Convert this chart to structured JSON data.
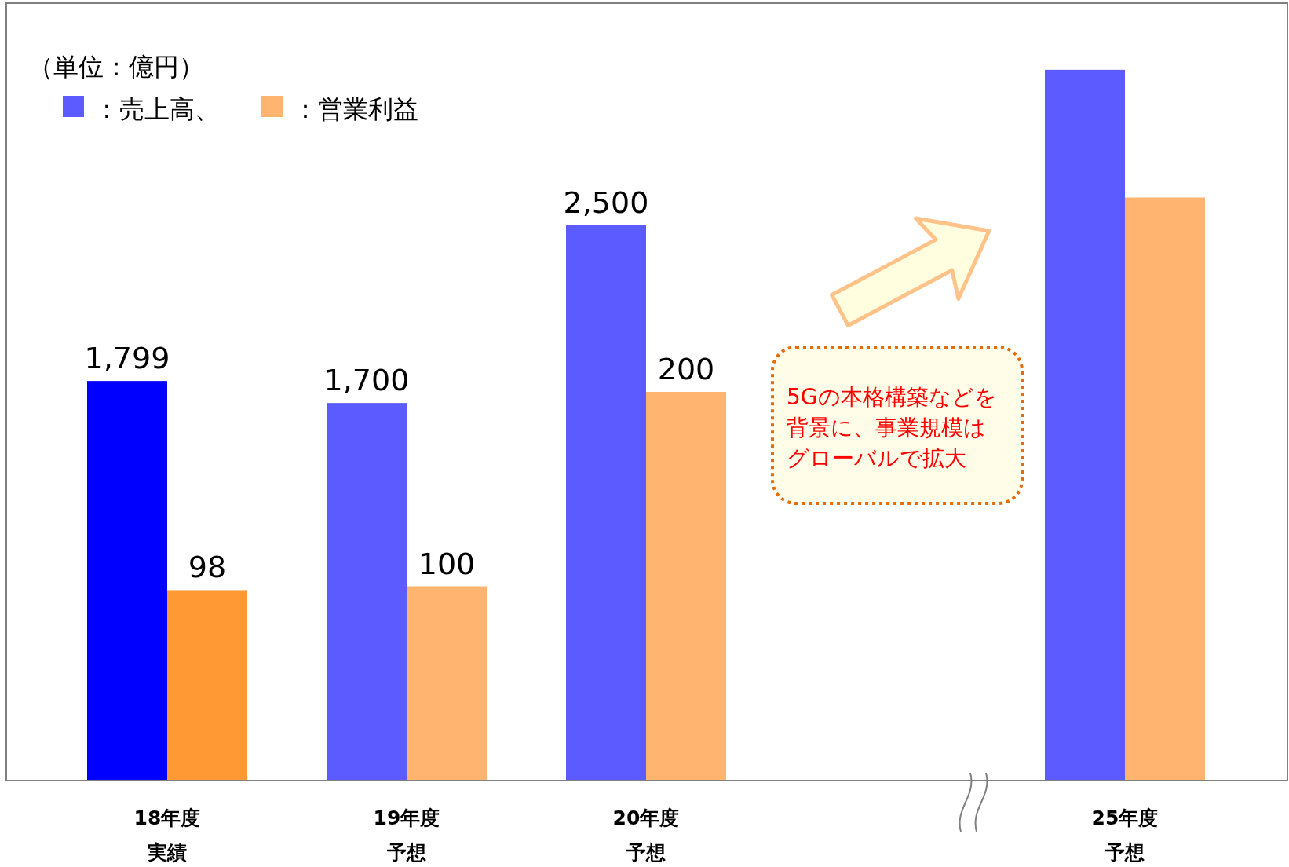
{
  "chart_data": {
    "type": "bar",
    "categories": [
      "18年度実績",
      "19年度予想",
      "20年度予想",
      null,
      "25年度予想"
    ],
    "ylim": [
      0,
      3500
    ],
    "y2lim": [
      0,
      400
    ],
    "series": [
      {
        "name": "：売上高、",
        "color": "#5b5bff",
        "colors": [
          "#0000ff",
          "#5b5bff",
          "#5b5bff",
          null,
          "#5b5bff"
        ],
        "values": [
          1799,
          1700,
          2500,
          null,
          3200
        ],
        "value_labels": [
          "1,799",
          "1,700",
          "2,500",
          null,
          null
        ]
      },
      {
        "name": "：営業利益",
        "color": "#ffb570",
        "axis": "y2",
        "colors": [
          "#ff9933",
          "#ffb570",
          "#ffb570",
          null,
          "#ffb570"
        ],
        "values": [
          98,
          100,
          200,
          null,
          300
        ],
        "value_labels": [
          "98",
          "100",
          "200",
          null,
          null
        ]
      }
    ],
    "legend": "top left",
    "annotations": [
      "（単位：億円）",
      "5Gの本格構築などを背景に、事業規模はグローバルで拡大"
    ]
  }
}
